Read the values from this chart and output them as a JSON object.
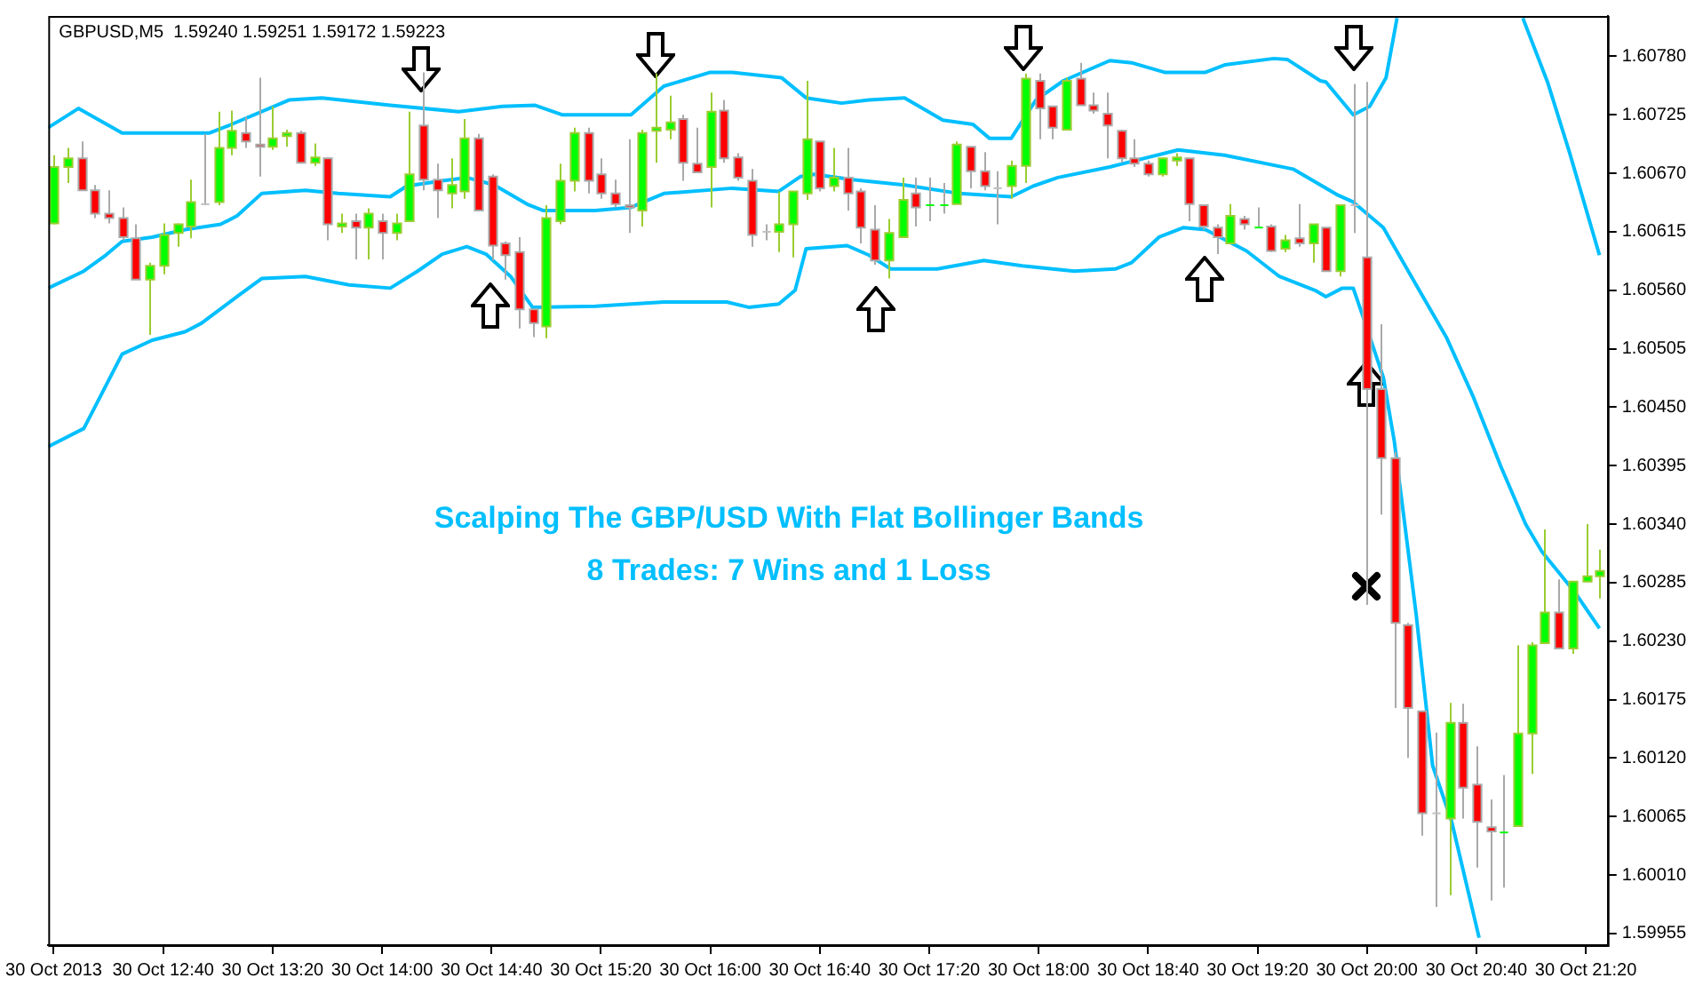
{
  "chart_data": {
    "type": "candlestick",
    "title": "GBPUSD,M5  1.59240 1.59251 1.59172 1.59223",
    "annotations": [
      "Scalping The GBP/USD With Flat Bollinger Bands",
      "8 Trades: 7 Wins and 1 Loss"
    ],
    "x": [
      "2013-10-30T12:00",
      "2013-10-30T12:05",
      "2013-10-30T12:10",
      "2013-10-30T12:15",
      "2013-10-30T12:20",
      "2013-10-30T12:25",
      "2013-10-30T12:30",
      "2013-10-30T12:35",
      "2013-10-30T12:40",
      "2013-10-30T12:45",
      "2013-10-30T12:50",
      "2013-10-30T12:55",
      "2013-10-30T13:00",
      "2013-10-30T13:05",
      "2013-10-30T13:10",
      "2013-10-30T13:15",
      "2013-10-30T13:20",
      "2013-10-30T13:25",
      "2013-10-30T13:30",
      "2013-10-30T13:35",
      "2013-10-30T13:40",
      "2013-10-30T13:45",
      "2013-10-30T13:50",
      "2013-10-30T13:55",
      "2013-10-30T14:00",
      "2013-10-30T14:05",
      "2013-10-30T14:10",
      "2013-10-30T14:15",
      "2013-10-30T14:20",
      "2013-10-30T14:25",
      "2013-10-30T14:30",
      "2013-10-30T14:35",
      "2013-10-30T14:40",
      "2013-10-30T14:45",
      "2013-10-30T14:50",
      "2013-10-30T14:55",
      "2013-10-30T15:00",
      "2013-10-30T15:05",
      "2013-10-30T15:10",
      "2013-10-30T15:15",
      "2013-10-30T15:20",
      "2013-10-30T15:25",
      "2013-10-30T15:30",
      "2013-10-30T15:35",
      "2013-10-30T15:40",
      "2013-10-30T15:45",
      "2013-10-30T15:50",
      "2013-10-30T15:55",
      "2013-10-30T16:00",
      "2013-10-30T16:05",
      "2013-10-30T16:10",
      "2013-10-30T16:15",
      "2013-10-30T16:20",
      "2013-10-30T16:25",
      "2013-10-30T16:30",
      "2013-10-30T16:35",
      "2013-10-30T16:40",
      "2013-10-30T16:45",
      "2013-10-30T16:50",
      "2013-10-30T16:55",
      "2013-10-30T17:00",
      "2013-10-30T17:05",
      "2013-10-30T17:10",
      "2013-10-30T17:15",
      "2013-10-30T17:20",
      "2013-10-30T17:25",
      "2013-10-30T17:30",
      "2013-10-30T17:35",
      "2013-10-30T17:40",
      "2013-10-30T17:45",
      "2013-10-30T17:50",
      "2013-10-30T17:55",
      "2013-10-30T18:00",
      "2013-10-30T18:05",
      "2013-10-30T18:10",
      "2013-10-30T18:15",
      "2013-10-30T18:20",
      "2013-10-30T18:25",
      "2013-10-30T18:30",
      "2013-10-30T18:35",
      "2013-10-30T18:40",
      "2013-10-30T18:45",
      "2013-10-30T18:50",
      "2013-10-30T18:55",
      "2013-10-30T19:00",
      "2013-10-30T19:05",
      "2013-10-30T19:10",
      "2013-10-30T19:15",
      "2013-10-30T19:20",
      "2013-10-30T19:25",
      "2013-10-30T19:30",
      "2013-10-30T19:35",
      "2013-10-30T19:40",
      "2013-10-30T19:45",
      "2013-10-30T19:50",
      "2013-10-30T19:55",
      "2013-10-30T20:00",
      "2013-10-30T20:05",
      "2013-10-30T20:10",
      "2013-10-30T20:15",
      "2013-10-30T20:20",
      "2013-10-30T20:25",
      "2013-10-30T20:30",
      "2013-10-30T20:35",
      "2013-10-30T20:40",
      "2013-10-30T20:45",
      "2013-10-30T20:50",
      "2013-10-30T20:55",
      "2013-10-30T21:00",
      "2013-10-30T21:05",
      "2013-10-30T21:10",
      "2013-10-30T21:15",
      "2013-10-30T21:20",
      "2013-10-30T21:25"
    ],
    "ohlc": [
      [
        1.60623,
        1.60687,
        1.60622,
        1.60676
      ],
      [
        1.60676,
        1.60694,
        1.60661,
        1.60684
      ],
      [
        1.60684,
        1.607,
        1.60654,
        1.60654
      ],
      [
        1.60654,
        1.60659,
        1.60628,
        1.60632
      ],
      [
        1.60632,
        1.60654,
        1.60623,
        1.60628
      ],
      [
        1.60628,
        1.60638,
        1.60607,
        1.6061
      ],
      [
        1.60609,
        1.60622,
        1.6057,
        1.6057
      ],
      [
        1.6057,
        1.60586,
        1.60518,
        1.60583
      ],
      [
        1.60583,
        1.60623,
        1.60575,
        1.60612
      ],
      [
        1.60614,
        1.60623,
        1.60601,
        1.60622
      ],
      [
        1.6062,
        1.60664,
        1.60609,
        1.60643
      ],
      [
        1.60641,
        1.60707,
        1.6064,
        1.60641
      ],
      [
        1.60643,
        1.60728,
        1.6064,
        1.60694
      ],
      [
        1.60694,
        1.60729,
        1.60687,
        1.6071
      ],
      [
        1.60708,
        1.60723,
        1.60694,
        1.607
      ],
      [
        1.60697,
        1.6076,
        1.60667,
        1.60695
      ],
      [
        1.60695,
        1.60733,
        1.60692,
        1.60703
      ],
      [
        1.60705,
        1.60711,
        1.60695,
        1.60708
      ],
      [
        1.60708,
        1.6071,
        1.60679,
        1.6068
      ],
      [
        1.6068,
        1.60698,
        1.60677,
        1.60685
      ],
      [
        1.60684,
        1.60685,
        1.60607,
        1.60622
      ],
      [
        1.6062,
        1.60632,
        1.60614,
        1.60623
      ],
      [
        1.60625,
        1.60632,
        1.60589,
        1.60619
      ],
      [
        1.60619,
        1.60637,
        1.60589,
        1.60632
      ],
      [
        1.60625,
        1.60632,
        1.60589,
        1.60614
      ],
      [
        1.60614,
        1.60632,
        1.60607,
        1.60623
      ],
      [
        1.60625,
        1.60728,
        1.60625,
        1.60669
      ],
      [
        1.60715,
        1.60765,
        1.60654,
        1.60664
      ],
      [
        1.60664,
        1.60679,
        1.60628,
        1.60654
      ],
      [
        1.60651,
        1.60684,
        1.60637,
        1.60659
      ],
      [
        1.60653,
        1.60721,
        1.60646,
        1.60703
      ],
      [
        1.60703,
        1.60707,
        1.60635,
        1.60635
      ],
      [
        1.60667,
        1.60669,
        1.60588,
        1.60602
      ],
      [
        1.60604,
        1.60606,
        1.6057,
        1.60593
      ],
      [
        1.60596,
        1.6061,
        1.60524,
        1.60542
      ],
      [
        1.60542,
        1.60542,
        1.60516,
        1.60529
      ],
      [
        1.60526,
        1.6064,
        1.60515,
        1.60628
      ],
      [
        1.60625,
        1.60679,
        1.60622,
        1.60663
      ],
      [
        1.60663,
        1.60713,
        1.60653,
        1.60708
      ],
      [
        1.60708,
        1.60713,
        1.60651,
        1.60663
      ],
      [
        1.60669,
        1.60684,
        1.60646,
        1.60651
      ],
      [
        1.60651,
        1.60664,
        1.60638,
        1.60641
      ],
      [
        1.6064,
        1.60702,
        1.60614,
        1.60638
      ],
      [
        1.60635,
        1.60711,
        1.6062,
        1.60708
      ],
      [
        1.6071,
        1.60764,
        1.6068,
        1.60713
      ],
      [
        1.60711,
        1.60743,
        1.60702,
        1.60718
      ],
      [
        1.60721,
        1.60725,
        1.60663,
        1.6068
      ],
      [
        1.60679,
        1.60713,
        1.60671,
        1.60671
      ],
      [
        1.60676,
        1.60746,
        1.60638,
        1.60728
      ],
      [
        1.60729,
        1.60739,
        1.6068,
        1.60684
      ],
      [
        1.60685,
        1.60689,
        1.60663,
        1.60666
      ],
      [
        1.60663,
        1.60674,
        1.60601,
        1.60612
      ],
      [
        1.60615,
        1.60622,
        1.60607,
        1.60615
      ],
      [
        1.60615,
        1.60653,
        1.60596,
        1.60622
      ],
      [
        1.60622,
        1.60653,
        1.60591,
        1.60653
      ],
      [
        1.60651,
        1.60757,
        1.60645,
        1.60702
      ],
      [
        1.607,
        1.607,
        1.60653,
        1.60656
      ],
      [
        1.60658,
        1.60694,
        1.60653,
        1.60666
      ],
      [
        1.60666,
        1.60694,
        1.60635,
        1.60651
      ],
      [
        1.60653,
        1.60656,
        1.60604,
        1.60619
      ],
      [
        1.60617,
        1.6064,
        1.60584,
        1.60588
      ],
      [
        1.60588,
        1.60627,
        1.60571,
        1.60614
      ],
      [
        1.6061,
        1.60666,
        1.6061,
        1.60645
      ],
      [
        1.60651,
        1.60666,
        1.6062,
        1.60638
      ],
      [
        1.6064,
        1.60666,
        1.60625,
        1.6064
      ],
      [
        1.6064,
        1.60661,
        1.60632,
        1.6064
      ],
      [
        1.60641,
        1.607,
        1.60641,
        1.60697
      ],
      [
        1.60695,
        1.60695,
        1.60656,
        1.60672
      ],
      [
        1.60672,
        1.6069,
        1.60654,
        1.60658
      ],
      [
        1.60656,
        1.60672,
        1.60622,
        1.60656
      ],
      [
        1.60658,
        1.60682,
        1.60646,
        1.60677
      ],
      [
        1.60677,
        1.60764,
        1.60661,
        1.60759
      ],
      [
        1.60757,
        1.60764,
        1.60702,
        1.60731
      ],
      [
        1.60733,
        1.60733,
        1.60702,
        1.60713
      ],
      [
        1.60711,
        1.6076,
        1.60711,
        1.60757
      ],
      [
        1.60759,
        1.60774,
        1.60734,
        1.60734
      ],
      [
        1.60734,
        1.60746,
        1.60726,
        1.60729
      ],
      [
        1.60726,
        1.60746,
        1.60684,
        1.60715
      ],
      [
        1.6071,
        1.60711,
        1.6068,
        1.60684
      ],
      [
        1.60684,
        1.60702,
        1.60676,
        1.60679
      ],
      [
        1.60679,
        1.60682,
        1.60667,
        1.60669
      ],
      [
        1.60669,
        1.60685,
        1.60667,
        1.60684
      ],
      [
        1.60682,
        1.60689,
        1.60677,
        1.60685
      ],
      [
        1.60684,
        1.60684,
        1.60625,
        1.60641
      ],
      [
        1.6064,
        1.6064,
        1.60617,
        1.6062
      ],
      [
        1.60619,
        1.60622,
        1.60594,
        1.6061
      ],
      [
        1.60604,
        1.60641,
        1.60604,
        1.6063
      ],
      [
        1.60627,
        1.6063,
        1.60617,
        1.60622
      ],
      [
        1.60619,
        1.60638,
        1.60619,
        1.60619
      ],
      [
        1.6062,
        1.60622,
        1.60596,
        1.60597
      ],
      [
        1.60599,
        1.60612,
        1.60596,
        1.60607
      ],
      [
        1.60609,
        1.60641,
        1.60601,
        1.60604
      ],
      [
        1.60604,
        1.60622,
        1.60586,
        1.60622
      ],
      [
        1.60619,
        1.60619,
        1.60578,
        1.60578
      ],
      [
        1.60578,
        1.6064,
        1.60573,
        1.6064
      ],
      [
        1.6064,
        1.60754,
        1.60614,
        1.6064
      ],
      [
        1.60591,
        1.60756,
        1.60264,
        1.60467
      ],
      [
        1.60467,
        1.60528,
        1.60349,
        1.60402
      ],
      [
        1.60402,
        1.60408,
        1.60167,
        1.60247
      ],
      [
        1.60245,
        1.60247,
        1.6012,
        1.60167
      ],
      [
        1.60164,
        1.60164,
        1.60047,
        1.60068
      ],
      [
        1.60068,
        1.60144,
        1.5998,
        1.60068
      ],
      [
        1.60063,
        1.60172,
        1.59991,
        1.60153
      ],
      [
        1.60153,
        1.60171,
        1.60063,
        1.60092
      ],
      [
        1.60095,
        1.60131,
        1.60017,
        1.6006
      ],
      [
        1.60055,
        1.60081,
        1.59986,
        1.60051
      ],
      [
        1.6005,
        1.60104,
        1.59998,
        1.6005
      ],
      [
        1.60056,
        1.60226,
        1.60056,
        1.60143
      ],
      [
        1.60143,
        1.60229,
        1.60105,
        1.60226
      ],
      [
        1.60228,
        1.60335,
        1.60228,
        1.60257
      ],
      [
        1.60257,
        1.60288,
        1.60223,
        1.60223
      ],
      [
        1.60223,
        1.60286,
        1.60218,
        1.60286
      ],
      [
        1.60286,
        1.6034,
        1.60286,
        1.60291
      ],
      [
        1.60291,
        1.60316,
        1.6027,
        1.60296
      ]
    ],
    "colors": [
      "#00ff00",
      "#00ff00",
      "#ff0000",
      "#ff0000",
      "#ff0000",
      "#ff0000",
      "#ff0000",
      "#00ff00",
      "#00ff00",
      "#00ff00",
      "#00ff00",
      "#c0c0c0",
      "#00ff00",
      "#00ff00",
      "#ff0000",
      "#ff0000",
      "#00ff00",
      "#00ff00",
      "#ff0000",
      "#00ff00",
      "#ff0000",
      "#00ff00",
      "#ff0000",
      "#00ff00",
      "#ff0000",
      "#00ff00",
      "#00ff00",
      "#ff0000",
      "#ff0000",
      "#00ff00",
      "#00ff00",
      "#ff0000",
      "#ff0000",
      "#ff0000",
      "#ff0000",
      "#ff0000",
      "#00ff00",
      "#00ff00",
      "#00ff00",
      "#ff0000",
      "#ff0000",
      "#ff0000",
      "#ff0000",
      "#00ff00",
      "#00ff00",
      "#00ff00",
      "#ff0000",
      "#ff0000",
      "#00ff00",
      "#ff0000",
      "#ff0000",
      "#ff0000",
      "#c0c0c0",
      "#00ff00",
      "#00ff00",
      "#00ff00",
      "#ff0000",
      "#00ff00",
      "#ff0000",
      "#ff0000",
      "#ff0000",
      "#00ff00",
      "#00ff00",
      "#ff0000",
      "#00ff00",
      "#00ff00",
      "#00ff00",
      "#ff0000",
      "#ff0000",
      "#c0c0c0",
      "#00ff00",
      "#00ff00",
      "#ff0000",
      "#ff0000",
      "#00ff00",
      "#ff0000",
      "#ff0000",
      "#ff0000",
      "#ff0000",
      "#ff0000",
      "#ff0000",
      "#00ff00",
      "#00ff00",
      "#ff0000",
      "#ff0000",
      "#ff0000",
      "#00ff00",
      "#ff0000",
      "#00ff00",
      "#ff0000",
      "#00ff00",
      "#ff0000",
      "#00ff00",
      "#ff0000",
      "#00ff00",
      "#c0c0c0",
      "#ff0000",
      "#ff0000",
      "#ff0000",
      "#ff0000",
      "#ff0000",
      "#c0c0c0",
      "#00ff00",
      "#ff0000",
      "#ff0000",
      "#ff0000",
      "#00ff00",
      "#00ff00",
      "#00ff00",
      "#00ff00",
      "#ff0000",
      "#00ff00",
      "#00ff00",
      "#00ff00"
    ],
    "series": [
      {
        "type": "line",
        "color": "#00bfff",
        "x": [
          "2013-10-30T11:58",
          "2013-10-30T12:09",
          "2013-10-30T12:25",
          "2013-10-30T12:57",
          "2013-10-30T13:04",
          "2013-10-30T13:26",
          "2013-10-30T13:38",
          "2013-10-30T14:03",
          "2013-10-30T14:28",
          "2013-10-30T14:44",
          "2013-10-30T14:56",
          "2013-10-30T15:06",
          "2013-10-30T15:31",
          "2013-10-30T15:43",
          "2013-10-30T16:00",
          "2013-10-30T16:08",
          "2013-10-30T16:26",
          "2013-10-30T16:35",
          "2013-10-30T16:48",
          "2013-10-30T16:58",
          "2013-10-30T17:11",
          "2013-10-30T17:25",
          "2013-10-30T17:36",
          "2013-10-30T17:42",
          "2013-10-30T17:50",
          "2013-10-30T17:59",
          "2013-10-30T18:09",
          "2013-10-30T18:26",
          "2013-10-30T18:34",
          "2013-10-30T18:46",
          "2013-10-30T19:01",
          "2013-10-30T19:08",
          "2013-10-30T19:26",
          "2013-10-30T19:31",
          "2013-10-30T19:43",
          "2013-10-30T19:45",
          "2013-10-30T19:55",
          "2013-10-30T20:01",
          "2013-10-30T20:07",
          "2013-10-30T20:11",
          "2013-10-30T20:30",
          "2013-10-30T20:57",
          "2013-10-30T21:06",
          "2013-10-30T21:14",
          "2013-10-30T21:25"
        ],
        "values": [
          1.60713,
          1.60731,
          1.60708,
          1.60708,
          1.60715,
          1.60739,
          1.60741,
          1.60734,
          1.60728,
          1.60733,
          1.60734,
          1.60725,
          1.60725,
          1.60752,
          1.60765,
          1.60765,
          1.6076,
          1.60741,
          1.60736,
          1.60739,
          1.60741,
          1.6072,
          1.60716,
          1.60703,
          1.60703,
          1.60739,
          1.60757,
          1.60776,
          1.60774,
          1.60765,
          1.60765,
          1.60772,
          1.60778,
          1.60777,
          1.60757,
          1.60756,
          1.60725,
          1.60733,
          1.6076,
          1.60816,
          null,
          1.60816,
          1.60756,
          1.6069,
          1.60593
        ]
      },
      {
        "type": "line",
        "color": "#00bfff",
        "x": [
          "2013-10-30T11:58",
          "2013-10-30T12:11",
          "2013-10-30T12:19",
          "2013-10-30T12:25",
          "2013-10-30T12:36",
          "2013-10-30T12:48",
          "2013-10-30T13:01",
          "2013-10-30T13:07",
          "2013-10-30T13:16",
          "2013-10-30T13:32",
          "2013-10-30T13:44",
          "2013-10-30T14:03",
          "2013-10-30T14:09",
          "2013-10-30T14:22",
          "2013-10-30T14:31",
          "2013-10-30T14:41",
          "2013-10-30T14:53",
          "2013-10-30T14:59",
          "2013-10-30T15:18",
          "2013-10-30T15:31",
          "2013-10-30T15:43",
          "2013-10-30T16:08",
          "2013-10-30T16:25",
          "2013-10-30T16:33",
          "2013-10-30T16:38",
          "2013-10-30T16:52",
          "2013-10-30T17:11",
          "2013-10-30T17:31",
          "2013-10-30T17:50",
          "2013-10-30T17:58",
          "2013-10-30T18:07",
          "2013-10-30T18:26",
          "2013-10-30T18:51",
          "2013-10-30T19:08",
          "2013-10-30T19:33",
          "2013-10-30T19:49",
          "2013-10-30T19:55",
          "2013-10-30T20:06",
          "2013-10-30T20:18",
          "2013-10-30T20:29",
          "2013-10-30T20:39",
          "2013-10-30T20:49",
          "2013-10-30T20:58",
          "2013-10-30T21:04",
          "2013-10-30T21:16",
          "2013-10-30T21:25"
        ],
        "values": [
          1.60562,
          1.60578,
          1.60593,
          1.60606,
          1.6061,
          1.60617,
          1.60622,
          1.6063,
          1.60651,
          1.60654,
          1.60651,
          1.60648,
          1.60658,
          1.60663,
          1.60666,
          1.60659,
          1.60641,
          1.60635,
          1.60635,
          1.60638,
          1.60651,
          1.60656,
          1.60653,
          1.60667,
          1.60669,
          1.60664,
          1.60659,
          1.60651,
          1.60648,
          1.60658,
          1.60666,
          1.60676,
          1.60692,
          1.60687,
          1.60674,
          1.6065,
          1.60643,
          1.60619,
          1.60565,
          1.60516,
          1.60459,
          1.60394,
          1.6034,
          1.60314,
          1.60276,
          1.60242
        ]
      },
      {
        "type": "line",
        "color": "#00bfff",
        "x": [
          "2013-10-30T11:58",
          "2013-10-30T12:11",
          "2013-10-30T12:25",
          "2013-10-30T12:36",
          "2013-10-30T12:48",
          "2013-10-30T12:54",
          "2013-10-30T13:07",
          "2013-10-30T13:16",
          "2013-10-30T13:32",
          "2013-10-30T13:48",
          "2013-10-30T14:03",
          "2013-10-30T14:13",
          "2013-10-30T14:22",
          "2013-10-30T14:31",
          "2013-10-30T14:38",
          "2013-10-30T14:47",
          "2013-10-30T14:55",
          "2013-10-30T15:18",
          "2013-10-30T15:43",
          "2013-10-30T16:06",
          "2013-10-30T16:14",
          "2013-10-30T16:25",
          "2013-10-30T16:31",
          "2013-10-30T16:35",
          "2013-10-30T16:50",
          "2013-10-30T16:58",
          "2013-10-30T17:06",
          "2013-10-30T17:23",
          "2013-10-30T17:40",
          "2013-10-30T17:54",
          "2013-10-30T18:13",
          "2013-10-30T18:28",
          "2013-10-30T18:34",
          "2013-10-30T18:44",
          "2013-10-30T18:53",
          "2013-10-30T19:01",
          "2013-10-30T19:16",
          "2013-10-30T19:28",
          "2013-10-30T19:41",
          "2013-10-30T19:45",
          "2013-10-30T19:51",
          "2013-10-30T19:55",
          "2013-10-30T19:59",
          "2013-10-30T20:06",
          "2013-10-30T20:10",
          "2013-10-30T20:18",
          "2013-10-30T20:24",
          "2013-10-30T20:31",
          "2013-10-30T20:41"
        ],
        "values": [
          1.60413,
          1.6043,
          1.605,
          1.60513,
          1.60521,
          1.60529,
          1.60554,
          1.60571,
          1.60573,
          1.60565,
          1.60562,
          1.60578,
          1.60594,
          1.60601,
          1.60594,
          1.60573,
          1.60544,
          1.60545,
          1.60549,
          1.60549,
          1.60544,
          1.60547,
          1.6056,
          1.60599,
          1.60602,
          1.60593,
          1.6058,
          1.6058,
          1.60588,
          1.60583,
          1.60578,
          1.6058,
          1.60586,
          1.6061,
          1.60619,
          1.60617,
          1.60597,
          1.60573,
          1.6056,
          1.60554,
          1.60562,
          1.60562,
          1.60532,
          1.60478,
          1.60418,
          1.60255,
          1.60113,
          1.6006,
          1.59951
        ]
      }
    ],
    "xlim": [
      "2013-10-30T11:58",
      "2013-10-30T21:28"
    ],
    "xticks": [
      {
        "value": "2013-10-30T12:00",
        "label": "30 Oct 2013"
      },
      {
        "value": "2013-10-30T12:40",
        "label": "30 Oct 12:40"
      },
      {
        "value": "2013-10-30T13:20",
        "label": "30 Oct 13:20"
      },
      {
        "value": "2013-10-30T14:00",
        "label": "30 Oct 14:00"
      },
      {
        "value": "2013-10-30T14:40",
        "label": "30 Oct 14:40"
      },
      {
        "value": "2013-10-30T15:20",
        "label": "30 Oct 15:20"
      },
      {
        "value": "2013-10-30T16:00",
        "label": "30 Oct 16:00"
      },
      {
        "value": "2013-10-30T16:40",
        "label": "30 Oct 16:40"
      },
      {
        "value": "2013-10-30T17:20",
        "label": "30 Oct 17:20"
      },
      {
        "value": "2013-10-30T18:00",
        "label": "30 Oct 18:00"
      },
      {
        "value": "2013-10-30T18:40",
        "label": "30 Oct 18:40"
      },
      {
        "value": "2013-10-30T19:20",
        "label": "30 Oct 19:20"
      },
      {
        "value": "2013-10-30T20:00",
        "label": "30 Oct 20:00"
      },
      {
        "value": "2013-10-30T20:40",
        "label": "30 Oct 20:40"
      },
      {
        "value": "2013-10-30T21:20",
        "label": "30 Oct 21:20"
      }
    ],
    "ylim": [
      1.59944,
      1.60818
    ],
    "yticks": [
      {
        "value": 1.59955,
        "label": "1.59955"
      },
      {
        "value": 1.6001,
        "label": "1.60010"
      },
      {
        "value": 1.60065,
        "label": "1.60065"
      },
      {
        "value": 1.6012,
        "label": "1.60120"
      },
      {
        "value": 1.60175,
        "label": "1.60175"
      },
      {
        "value": 1.6023,
        "label": "1.60230"
      },
      {
        "value": 1.60285,
        "label": "1.60285"
      },
      {
        "value": 1.6034,
        "label": "1.60340"
      },
      {
        "value": 1.60395,
        "label": "1.60395"
      },
      {
        "value": 1.6045,
        "label": "1.60450"
      },
      {
        "value": 1.60505,
        "label": "1.60505"
      },
      {
        "value": 1.6056,
        "label": "1.60560"
      },
      {
        "value": 1.60615,
        "label": "1.60615"
      },
      {
        "value": 1.6067,
        "label": "1.60670"
      },
      {
        "value": 1.60725,
        "label": "1.60725"
      },
      {
        "value": 1.6078,
        "label": "1.60780"
      }
    ]
  }
}
